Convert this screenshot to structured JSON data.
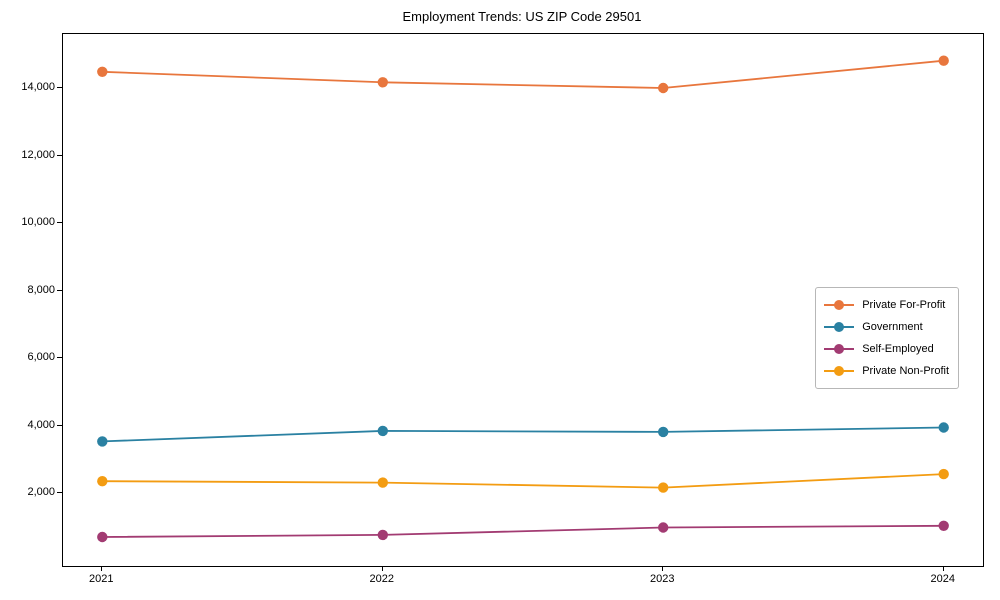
{
  "chart_data": {
    "type": "line",
    "title": "Employment Trends: US ZIP Code 29501",
    "x": [
      2021,
      2022,
      2023,
      2024
    ],
    "x_tick_labels": [
      "2021",
      "2022",
      "2023",
      "2024"
    ],
    "y_ticks": [
      2000,
      4000,
      6000,
      8000,
      10000,
      12000,
      14000
    ],
    "y_tick_labels": [
      "2,000",
      "4,000",
      "6,000",
      "8,000",
      "10,000",
      "12,000",
      "14,000"
    ],
    "xlim": [
      2020.86,
      2024.14
    ],
    "ylim": [
      -150,
      15600
    ],
    "grid": false,
    "legend_position": "center-right",
    "xlabel": "",
    "ylabel": "",
    "series": [
      {
        "name": "Private For-Profit",
        "color": "#e8763d",
        "values": [
          14480,
          14170,
          14000,
          14810
        ]
      },
      {
        "name": "Government",
        "color": "#2a81a2",
        "values": [
          3540,
          3850,
          3820,
          3950
        ]
      },
      {
        "name": "Self-Employed",
        "color": "#a23b72",
        "values": [
          710,
          770,
          990,
          1040
        ]
      },
      {
        "name": "Private Non-Profit",
        "color": "#f39c12",
        "values": [
          2360,
          2320,
          2170,
          2570
        ]
      }
    ]
  }
}
